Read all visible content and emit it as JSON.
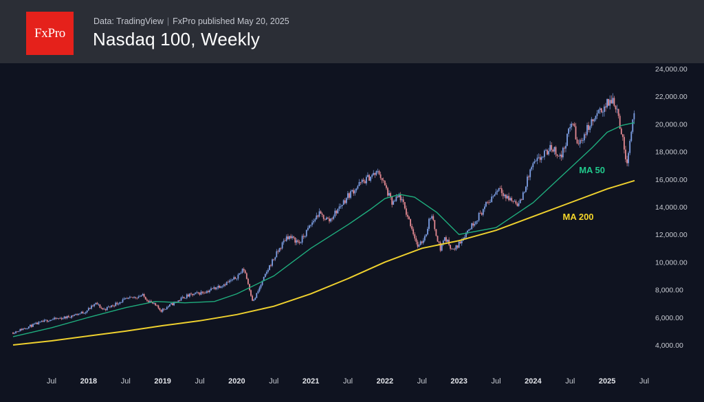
{
  "header": {
    "logo_text": "FxPro",
    "source_text": "Data: TradingView",
    "publisher_text": "FxPro published May 20, 2025",
    "title": "Nasdaq 100, Weekly"
  },
  "colors": {
    "header_bg": "#2b2e36",
    "chart_bg": "#0f1320",
    "logo_red": "#e5211b",
    "candle_up": "#7ea0e6",
    "candle_down": "#e58a92",
    "ma50": "#1fae7e",
    "ma200": "#efd12e"
  },
  "chart_data": {
    "type": "line",
    "title": "Nasdaq 100, Weekly",
    "ylabel": "",
    "xlabel": "",
    "ylim": [
      3000,
      24200
    ],
    "xlim": [
      2017.0,
      2025.75
    ],
    "y_ticks": [
      "24,000.00",
      "22,000.00",
      "20,000.00",
      "18,000.00",
      "16,000.00",
      "14,000.00",
      "12,000.00",
      "10,000.00",
      "8,000.00",
      "6,000.00",
      "4,000.00"
    ],
    "y_tick_values": [
      24000,
      22000,
      20000,
      18000,
      16000,
      14000,
      12000,
      10000,
      8000,
      6000,
      4000
    ],
    "x_ticks": [
      {
        "label": "Jul",
        "t": 2017.5,
        "year": false
      },
      {
        "label": "2018",
        "t": 2018.0,
        "year": true
      },
      {
        "label": "Jul",
        "t": 2018.5,
        "year": false
      },
      {
        "label": "2019",
        "t": 2019.0,
        "year": true
      },
      {
        "label": "Jul",
        "t": 2019.5,
        "year": false
      },
      {
        "label": "2020",
        "t": 2020.0,
        "year": true
      },
      {
        "label": "Jul",
        "t": 2020.5,
        "year": false
      },
      {
        "label": "2021",
        "t": 2021.0,
        "year": true
      },
      {
        "label": "Jul",
        "t": 2021.5,
        "year": false
      },
      {
        "label": "2022",
        "t": 2022.0,
        "year": true
      },
      {
        "label": "Jul",
        "t": 2022.5,
        "year": false
      },
      {
        "label": "2023",
        "t": 2023.0,
        "year": true
      },
      {
        "label": "Jul",
        "t": 2023.5,
        "year": false
      },
      {
        "label": "2024",
        "t": 2024.0,
        "year": true
      },
      {
        "label": "Jul",
        "t": 2024.5,
        "year": false
      },
      {
        "label": "2025",
        "t": 2025.0,
        "year": true
      },
      {
        "label": "Jul",
        "t": 2025.5,
        "year": false
      }
    ],
    "price": {
      "name": "Nasdaq 100 weekly candles",
      "x": [
        2016.98,
        2017.2,
        2017.45,
        2017.7,
        2017.95,
        2018.1,
        2018.2,
        2018.45,
        2018.72,
        2018.98,
        2019.3,
        2019.6,
        2019.95,
        2020.1,
        2020.22,
        2020.45,
        2020.68,
        2020.85,
        2021.0,
        2021.1,
        2021.25,
        2021.5,
        2021.65,
        2021.8,
        2021.92,
        2022.1,
        2022.2,
        2022.35,
        2022.45,
        2022.55,
        2022.62,
        2022.75,
        2022.8,
        2022.93,
        2023.08,
        2023.3,
        2023.55,
        2023.63,
        2023.82,
        2023.98,
        2024.25,
        2024.38,
        2024.53,
        2024.6,
        2024.75,
        2024.95,
        2025.08,
        2025.14,
        2025.26,
        2025.3,
        2025.37
      ],
      "y": [
        4900,
        5350,
        5800,
        6000,
        6400,
        7000,
        6550,
        7200,
        7600,
        6500,
        7500,
        7900,
        8700,
        9500,
        7100,
        9800,
        11900,
        11400,
        12700,
        13500,
        13000,
        14800,
        15600,
        16200,
        16500,
        14200,
        14800,
        12700,
        11000,
        12000,
        13500,
        10900,
        11800,
        10800,
        12000,
        13600,
        15500,
        14700,
        14200,
        16900,
        18300,
        17600,
        20300,
        18400,
        19800,
        21200,
        21800,
        21000,
        17200,
        18500,
        21200
      ]
    },
    "series": [
      {
        "name": "MA 50",
        "x": [
          2016.98,
          2017.5,
          2018.0,
          2018.5,
          2018.9,
          2019.3,
          2019.7,
          2020.0,
          2020.5,
          2021.0,
          2021.5,
          2021.8,
          2022.0,
          2022.2,
          2022.4,
          2022.7,
          2023.0,
          2023.5,
          2024.0,
          2024.5,
          2024.8,
          2025.0,
          2025.2,
          2025.37
        ],
        "values": [
          4600,
          5250,
          6000,
          6700,
          7150,
          7050,
          7150,
          7700,
          9000,
          11000,
          12700,
          13800,
          14600,
          14900,
          14700,
          13600,
          12000,
          12500,
          14300,
          16800,
          18300,
          19400,
          19900,
          20100
        ]
      },
      {
        "name": "MA 200",
        "x": [
          2016.98,
          2017.5,
          2018.0,
          2018.5,
          2019.0,
          2019.5,
          2020.0,
          2020.5,
          2021.0,
          2021.5,
          2022.0,
          2022.5,
          2023.0,
          2023.5,
          2024.0,
          2024.5,
          2025.0,
          2025.37
        ],
        "values": [
          4000,
          4300,
          4650,
          5000,
          5400,
          5750,
          6200,
          6800,
          7700,
          8800,
          10000,
          11000,
          11550,
          12300,
          13300,
          14300,
          15300,
          15900
        ]
      }
    ],
    "annotations": [
      {
        "text": "MA 50",
        "x": 2024.62,
        "y": 16450,
        "color": "#21c98c"
      },
      {
        "text": "MA 200",
        "x": 2024.4,
        "y": 13050,
        "color": "#f5d62a"
      }
    ]
  }
}
